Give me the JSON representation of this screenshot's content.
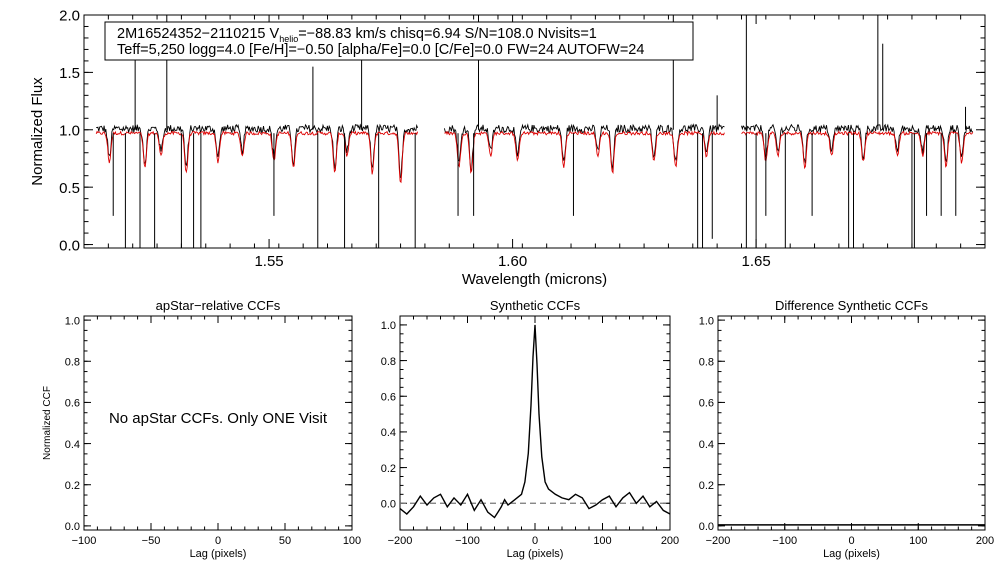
{
  "colors": {
    "observed": "#000000",
    "model": "#dd0000",
    "zero_line": "#777777",
    "frame": "#000000"
  },
  "chart_data": [
    {
      "id": "spectrum",
      "type": "line",
      "title": "",
      "xlabel": "Wavelength (microns)",
      "ylabel": "Normalized Flux",
      "xlim": [
        1.512,
        1.697
      ],
      "ylim": [
        -0.03,
        2.0
      ],
      "xticks": [
        1.55,
        1.6,
        1.65
      ],
      "xtick_labels": [
        "1.55",
        "1.60",
        "1.65"
      ],
      "yticks": [
        0.0,
        0.5,
        1.0,
        1.5,
        2.0
      ],
      "ytick_labels": [
        "0.0",
        "0.5",
        "1.0",
        "1.5",
        "2.0"
      ],
      "info_line1_star": "2M16524352−2110215",
      "info_line1_vhelio_label": "V",
      "info_line1_vhelio_sub": "helio",
      "info_line1_rest": "=−88.83 km/s  chisq=6.94  S/N=108.0  Nvisits=1",
      "info_line2": "Teff=5,250 logg=4.0 [Fe/H]=−0.50 [alpha/Fe]=0.0 [C/Fe]=0.0 FW=24 AUTOFW=24",
      "chips": [
        [
          1.5145,
          1.5805
        ],
        [
          1.586,
          1.6435
        ],
        [
          1.647,
          1.6945
        ]
      ],
      "continuum": 0.97,
      "spikes_up": [
        1.5225,
        1.529,
        1.559,
        1.569,
        1.593,
        1.633,
        1.642,
        1.648,
        1.675,
        1.676,
        1.693
      ],
      "spikes_up_heights": [
        1.82,
        2.0,
        1.55,
        1.7,
        2.0,
        2.0,
        1.3,
        2.0,
        2.0,
        1.75,
        1.2
      ],
      "spikes_down": [
        1.518,
        1.5205,
        1.5235,
        1.5265,
        1.532,
        1.5345,
        1.536,
        1.551,
        1.56,
        1.5655,
        1.5725,
        1.58,
        1.5888,
        1.592,
        1.6125,
        1.638,
        1.639,
        1.641,
        1.648,
        1.65,
        1.652,
        1.656,
        1.6615,
        1.669,
        1.67,
        1.682,
        1.6825,
        1.685,
        1.688,
        1.691
      ],
      "spikes_down_depths": [
        0.3,
        0.0,
        0.0,
        0.0,
        0.0,
        0.0,
        0.0,
        0.3,
        0.0,
        0.0,
        0.0,
        0.0,
        0.3,
        0.3,
        0.3,
        0.0,
        0.0,
        0.1,
        0.0,
        0.0,
        0.3,
        0.0,
        0.3,
        0.0,
        0.0,
        0.0,
        0.0,
        0.3,
        0.3,
        0.3
      ],
      "absorption_lines": [
        1.5172,
        1.5245,
        1.5278,
        1.533,
        1.5395,
        1.5445,
        1.551,
        1.555,
        1.5635,
        1.566,
        1.5712,
        1.577,
        1.589,
        1.5915,
        1.5955,
        1.601,
        1.6105,
        1.6175,
        1.6205,
        1.629,
        1.6335,
        1.6398,
        1.652,
        1.6545,
        1.66,
        1.6655,
        1.672,
        1.679,
        1.6842,
        1.689,
        1.6922
      ],
      "absorption_depths": [
        0.25,
        0.3,
        0.2,
        0.35,
        0.25,
        0.2,
        0.25,
        0.3,
        0.35,
        0.2,
        0.35,
        0.45,
        0.3,
        0.35,
        0.2,
        0.25,
        0.3,
        0.2,
        0.35,
        0.25,
        0.3,
        0.2,
        0.25,
        0.2,
        0.3,
        0.2,
        0.25,
        0.2,
        0.2,
        0.3,
        0.25
      ]
    },
    {
      "id": "apstar-ccf",
      "type": "line",
      "title": "apStar−relative CCFs",
      "xlabel": "Lag (pixels)",
      "ylabel": "Normalized CCF",
      "xlim": [
        -100,
        100
      ],
      "ylim": [
        -0.02,
        1.02
      ],
      "xticks": [
        -100,
        -50,
        0,
        50,
        100
      ],
      "xtick_labels": [
        "−100",
        "−50",
        "0",
        "50",
        "100"
      ],
      "yticks": [
        0.0,
        0.2,
        0.4,
        0.6,
        0.8,
        1.0
      ],
      "ytick_labels": [
        "0.0",
        "0.2",
        "0.4",
        "0.6",
        "0.8",
        "1.0"
      ],
      "message": "No apStar CCFs.  Only ONE Visit",
      "series": []
    },
    {
      "id": "synthetic-ccf",
      "type": "line",
      "title": "Synthetic CCFs",
      "xlabel": "Lag (pixels)",
      "ylabel": "",
      "xlim": [
        -200,
        200
      ],
      "ylim": [
        -0.15,
        1.05
      ],
      "xticks": [
        -200,
        -100,
        0,
        100,
        200
      ],
      "xtick_labels": [
        "−200",
        "−100",
        "0",
        "100",
        "200"
      ],
      "yticks": [
        0.0,
        0.2,
        0.4,
        0.6,
        0.8,
        1.0
      ],
      "ytick_labels": [
        "0.0",
        "0.2",
        "0.4",
        "0.6",
        "0.8",
        "1.0"
      ],
      "zero_line": 0.0,
      "series": [
        {
          "name": "ccf",
          "x": [
            -200,
            -190,
            -180,
            -170,
            -160,
            -150,
            -140,
            -130,
            -120,
            -110,
            -100,
            -90,
            -80,
            -70,
            -60,
            -55,
            -50,
            -45,
            -40,
            -30,
            -20,
            -15,
            -10,
            -6,
            -3,
            0,
            3,
            6,
            10,
            15,
            20,
            30,
            40,
            50,
            60,
            70,
            80,
            90,
            100,
            110,
            120,
            130,
            140,
            150,
            160,
            170,
            180,
            190,
            200
          ],
          "y": [
            -0.03,
            -0.06,
            -0.02,
            0.04,
            -0.01,
            0.03,
            0.05,
            -0.02,
            0.03,
            -0.01,
            0.05,
            -0.04,
            0.02,
            -0.05,
            -0.08,
            -0.05,
            -0.02,
            0.02,
            -0.01,
            0.02,
            0.05,
            0.12,
            0.28,
            0.55,
            0.82,
            1.0,
            0.78,
            0.5,
            0.26,
            0.12,
            0.08,
            0.05,
            0.03,
            0.02,
            0.05,
            0.03,
            -0.03,
            -0.01,
            0.02,
            0.04,
            -0.02,
            0.03,
            0.06,
            0.0,
            0.04,
            -0.02,
            0.01,
            -0.04,
            -0.06
          ]
        }
      ]
    },
    {
      "id": "difference-ccf",
      "type": "line",
      "title": "Difference Synthetic CCFs",
      "xlabel": "Lag (pixels)",
      "ylabel": "",
      "xlim": [
        -200,
        200
      ],
      "ylim": [
        -0.02,
        1.02
      ],
      "xticks": [
        -200,
        -100,
        0,
        100,
        200
      ],
      "xtick_labels": [
        "−200",
        "−100",
        "0",
        "100",
        "200"
      ],
      "yticks": [
        0.0,
        0.2,
        0.4,
        0.6,
        0.8,
        1.0
      ],
      "ytick_labels": [
        "0.0",
        "0.2",
        "0.4",
        "0.6",
        "0.8",
        "1.0"
      ],
      "series": [
        {
          "name": "difference",
          "x": [
            -200,
            200
          ],
          "y": [
            0.0,
            0.0
          ]
        }
      ]
    }
  ]
}
